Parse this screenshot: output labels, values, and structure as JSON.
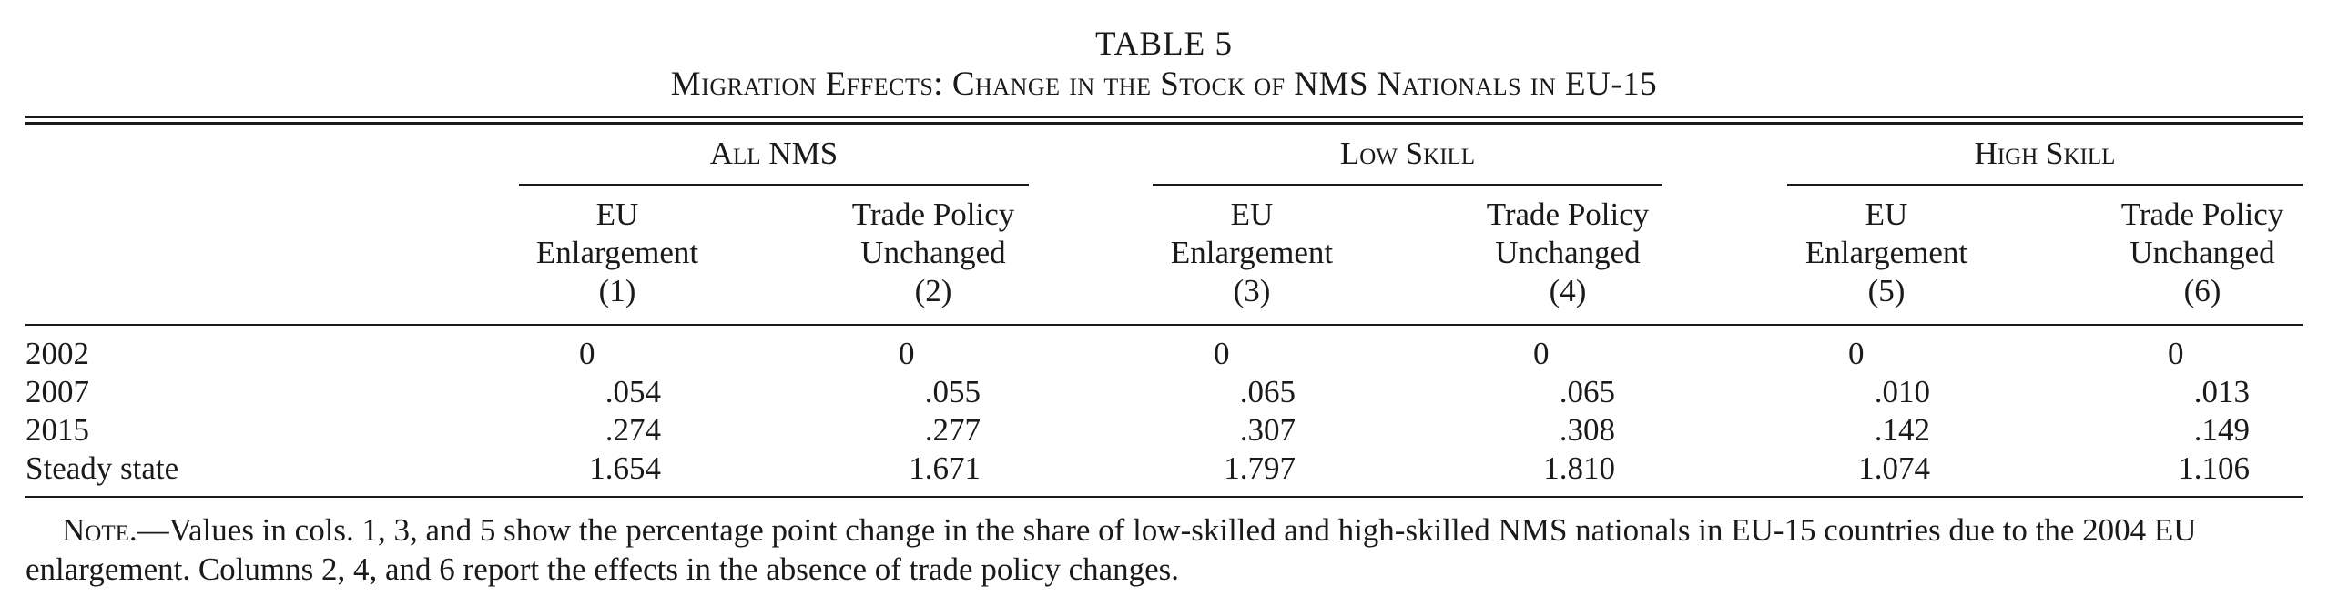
{
  "title": "TABLE 5",
  "subtitle": "Migration Effects: Change in the Stock of NMS Nationals in EU-15",
  "groups": [
    {
      "label": "All NMS"
    },
    {
      "label": "Low Skill"
    },
    {
      "label": "High Skill"
    }
  ],
  "columns": [
    {
      "line1": "EU",
      "line2": "Enlargement",
      "line3": "(1)"
    },
    {
      "line1": "Trade Policy",
      "line2": "Unchanged",
      "line3": "(2)"
    },
    {
      "line1": "EU",
      "line2": "Enlargement",
      "line3": "(3)"
    },
    {
      "line1": "Trade Policy",
      "line2": "Unchanged",
      "line3": "(4)"
    },
    {
      "line1": "EU",
      "line2": "Enlargement",
      "line3": "(5)"
    },
    {
      "line1": "Trade Policy",
      "line2": "Unchanged",
      "line3": "(6)"
    }
  ],
  "rows": [
    {
      "label": "2002",
      "values": [
        "0",
        "0",
        "0",
        "0",
        "0",
        "0"
      ]
    },
    {
      "label": "2007",
      "values": [
        ".054",
        ".055",
        ".065",
        ".065",
        ".010",
        ".013"
      ]
    },
    {
      "label": "2015",
      "values": [
        ".274",
        ".277",
        ".307",
        ".308",
        ".142",
        ".149"
      ]
    },
    {
      "label": "Steady state",
      "values": [
        "1.654",
        "1.671",
        "1.797",
        "1.810",
        "1.074",
        "1.106"
      ]
    }
  ],
  "note": {
    "label": "Note.",
    "text": "—Values in cols. 1, 3, and 5 show the percentage point change in the share of low-skilled and high-skilled NMS nationals in EU-15 countries due to the 2004 EU enlargement. Columns 2, 4, and 6 report the effects in the absence of trade policy changes."
  }
}
